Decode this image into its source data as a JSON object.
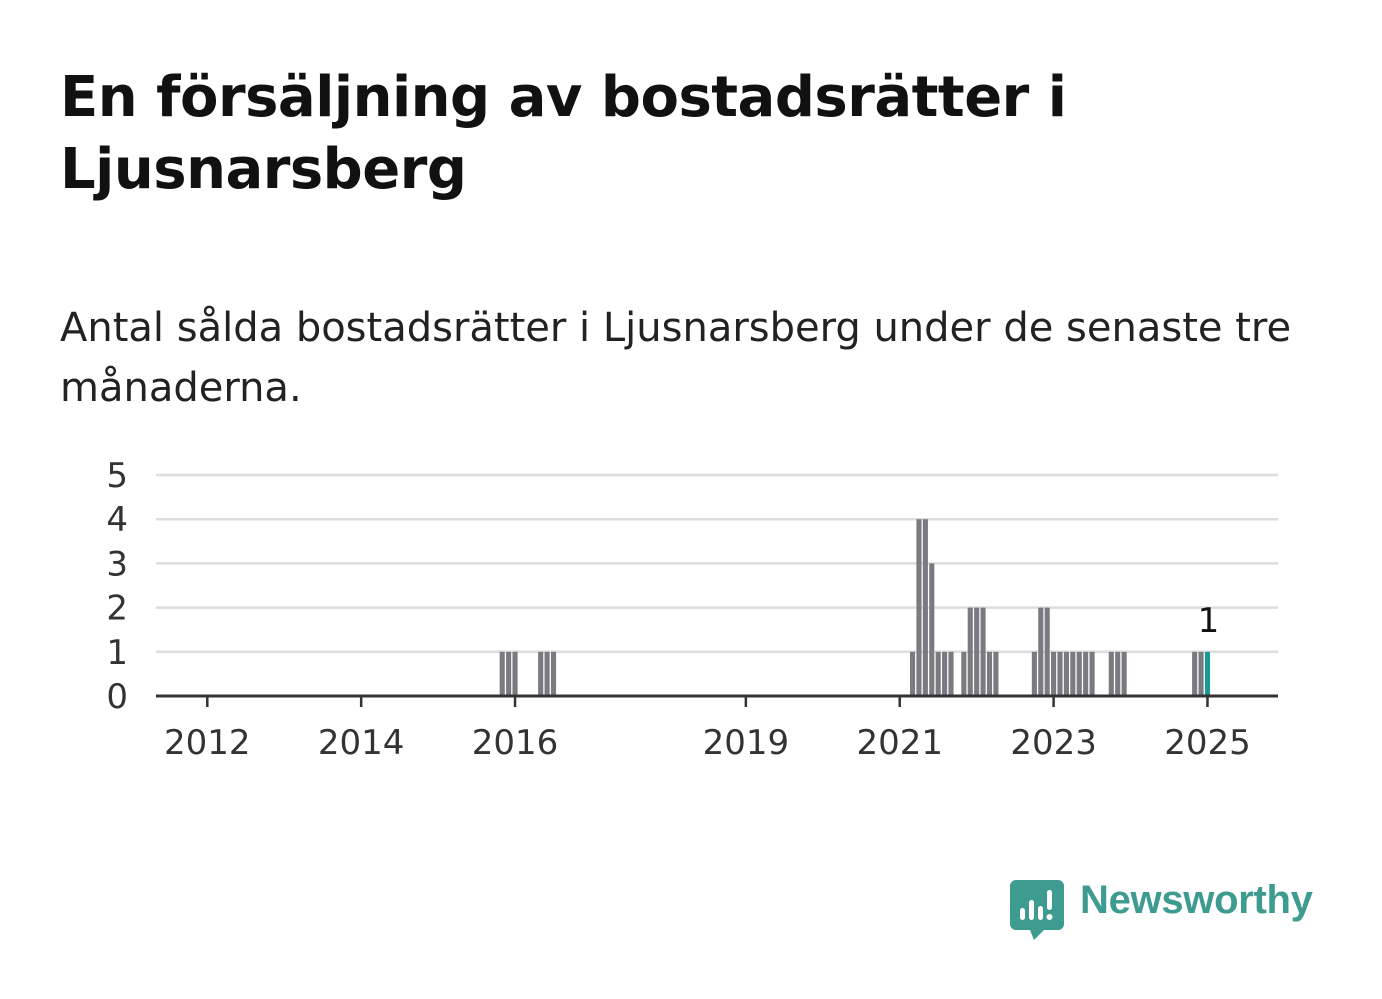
{
  "header": {
    "title": "En försäljning av bostadsrätter i Ljusnarsberg",
    "subtitle": "Antal sålda bostadsrätter i Ljusnarsberg under de senaste tre månaderna."
  },
  "brand": {
    "name": "Newsworthy",
    "icon": "newsworthy-chart-bubble-icon",
    "color": "#3d9b8f"
  },
  "colors": {
    "bar": "#7a7a80",
    "highlight": "#1a9a96",
    "grid": "#dddddd",
    "axis": "#333333"
  },
  "chart_data": {
    "type": "bar",
    "title": "",
    "xlabel": "",
    "ylabel": "",
    "ylim": [
      0,
      5
    ],
    "yticks": [
      0,
      1,
      2,
      3,
      4,
      5
    ],
    "xticks": [
      "2012",
      "2014",
      "2016",
      "2019",
      "2021",
      "2023",
      "2025"
    ],
    "xlim": [
      "2011-05",
      "2025-12"
    ],
    "grid": true,
    "legend": "none",
    "highlight_label": "1",
    "series": [
      {
        "values": [
          {
            "x": "2015-11",
            "y": 1
          },
          {
            "x": "2015-12",
            "y": 1
          },
          {
            "x": "2016-01",
            "y": 1
          },
          {
            "x": "2016-05",
            "y": 1
          },
          {
            "x": "2016-06",
            "y": 1
          },
          {
            "x": "2016-07",
            "y": 1
          },
          {
            "x": "2021-03",
            "y": 1
          },
          {
            "x": "2021-04",
            "y": 4
          },
          {
            "x": "2021-05",
            "y": 4
          },
          {
            "x": "2021-06",
            "y": 3
          },
          {
            "x": "2021-07",
            "y": 1
          },
          {
            "x": "2021-08",
            "y": 1
          },
          {
            "x": "2021-09",
            "y": 1
          },
          {
            "x": "2021-11",
            "y": 1
          },
          {
            "x": "2021-12",
            "y": 2
          },
          {
            "x": "2022-01",
            "y": 2
          },
          {
            "x": "2022-02",
            "y": 2
          },
          {
            "x": "2022-03",
            "y": 1
          },
          {
            "x": "2022-04",
            "y": 1
          },
          {
            "x": "2022-10",
            "y": 1
          },
          {
            "x": "2022-11",
            "y": 2
          },
          {
            "x": "2022-12",
            "y": 2
          },
          {
            "x": "2023-01",
            "y": 1
          },
          {
            "x": "2023-02",
            "y": 1
          },
          {
            "x": "2023-03",
            "y": 1
          },
          {
            "x": "2023-04",
            "y": 1
          },
          {
            "x": "2023-05",
            "y": 1
          },
          {
            "x": "2023-06",
            "y": 1
          },
          {
            "x": "2023-07",
            "y": 1
          },
          {
            "x": "2023-10",
            "y": 1
          },
          {
            "x": "2023-11",
            "y": 1
          },
          {
            "x": "2023-12",
            "y": 1
          },
          {
            "x": "2024-11",
            "y": 1
          },
          {
            "x": "2024-12",
            "y": 1
          },
          {
            "x": "2025-01",
            "y": 1
          }
        ]
      }
    ]
  }
}
